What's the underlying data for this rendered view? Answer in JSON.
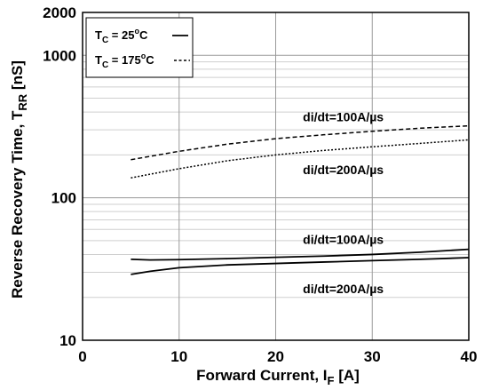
{
  "chart_data": {
    "type": "line",
    "xlabel": {
      "main": "Forward Current, I",
      "sub": "F",
      "unit": " [A]"
    },
    "ylabel": {
      "main": "Reverse Recovery Time, T",
      "sub": "RR",
      "unit": " [nS]"
    },
    "xlim": [
      0,
      40
    ],
    "ylim": [
      10,
      2000
    ],
    "yscale": "log",
    "grid": true,
    "x_ticks": [
      0,
      10,
      20,
      30,
      40
    ],
    "x_tick_labels": [
      "0",
      "10",
      "20",
      "30",
      "40"
    ],
    "y_ticks": [
      10,
      100,
      1000,
      2000
    ],
    "y_tick_labels": [
      "10",
      "100",
      "1000",
      "2000"
    ],
    "legend": {
      "placement": "top-left",
      "entries": [
        {
          "prefix": "T",
          "sub": "C",
          "text": " = 25",
          "sup": "o",
          "suffix": "C",
          "style": "solid"
        },
        {
          "prefix": "T",
          "sub": "C",
          "text": " = 175",
          "sup": "o",
          "suffix": "C",
          "style": "dashed"
        }
      ]
    },
    "series": [
      {
        "temperature": "175C",
        "condition": "di/dt=100A/µs",
        "style": "dashed",
        "x": [
          5,
          10,
          15,
          20,
          25,
          30,
          35,
          40
        ],
        "y": [
          185,
          212,
          238,
          260,
          277,
          293,
          308,
          320
        ]
      },
      {
        "temperature": "175C",
        "condition": "di/dt=200A/µs",
        "style": "dotted",
        "x": [
          5,
          10,
          15,
          20,
          25,
          30,
          35,
          40
        ],
        "y": [
          138,
          160,
          182,
          200,
          215,
          228,
          241,
          255
        ]
      },
      {
        "temperature": "25C",
        "condition": "di/dt=100A/µs",
        "style": "solid",
        "x": [
          5,
          7,
          10,
          15,
          20,
          25,
          30,
          35,
          40
        ],
        "y": [
          37,
          36.6,
          36.8,
          37.4,
          38.2,
          39,
          40,
          41.5,
          43.5
        ]
      },
      {
        "temperature": "25C",
        "condition": "di/dt=200A/µs",
        "style": "solid",
        "x": [
          5,
          7,
          10,
          15,
          20,
          25,
          30,
          35,
          40
        ],
        "y": [
          29,
          30.5,
          32.3,
          33.8,
          34.6,
          35.4,
          36.2,
          37,
          38
        ]
      }
    ],
    "annotations": [
      {
        "text": "di/dt=100A/µs",
        "x": 27,
        "y": 370
      },
      {
        "text": "di/dt=200A/µs",
        "x": 27,
        "y": 157
      },
      {
        "text": "di/dt=100A/µs",
        "x": 27,
        "y": 51
      },
      {
        "text": "di/dt=200A/µs",
        "x": 27,
        "y": 23
      }
    ]
  }
}
